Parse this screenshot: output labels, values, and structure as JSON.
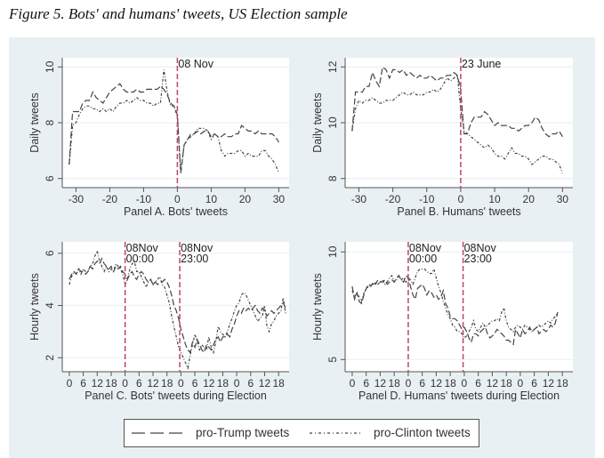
{
  "figure_title": "Figure 5. Bots' and humans' tweets, US Election sample",
  "legend": {
    "position": "bottom",
    "items": [
      {
        "label": "pro-Trump tweets",
        "style": "dashed"
      },
      {
        "label": "pro-Clinton tweets",
        "style": "dash-dot"
      }
    ]
  },
  "colors": {
    "background": "#e9f0f3",
    "plot": "#ffffff",
    "line": "#444444",
    "vline": "#c0426a"
  },
  "chart_data": [
    {
      "id": "A",
      "type": "line",
      "xlabel": "Panel A. Bots' tweets",
      "ylabel": "Daily tweets",
      "xlim": [
        -33,
        32
      ],
      "ylim": [
        5.8,
        10.2
      ],
      "xticks": [
        -30,
        -20,
        -10,
        0,
        10,
        20,
        30
      ],
      "yticks": [
        6,
        8,
        10
      ],
      "grid": true,
      "vlines": [
        {
          "x": 0,
          "label": [
            "08 Nov"
          ]
        }
      ],
      "x": [
        -32,
        -31,
        -30,
        -29,
        -28,
        -27,
        -26,
        -25,
        -24,
        -23,
        -22,
        -21,
        -20,
        -19,
        -18,
        -17,
        -16,
        -15,
        -14,
        -13,
        -12,
        -11,
        -10,
        -9,
        -8,
        -7,
        -6,
        -5,
        -4,
        -3,
        -2,
        -1,
        0,
        1,
        2,
        3,
        4,
        5,
        6,
        7,
        8,
        9,
        10,
        11,
        12,
        13,
        14,
        15,
        16,
        17,
        18,
        19,
        20,
        21,
        22,
        23,
        24,
        25,
        26,
        27,
        28,
        29,
        30
      ],
      "series": [
        {
          "name": "pro-Trump tweets",
          "style": "dashed",
          "values": [
            6.5,
            8.4,
            8.4,
            8.4,
            8.7,
            8.8,
            8.8,
            9.1,
            8.9,
            8.8,
            8.7,
            8.9,
            9.1,
            9.2,
            9.3,
            9.4,
            9.2,
            9.1,
            9.1,
            9.1,
            9.2,
            9.1,
            9.1,
            9.2,
            9.2,
            9.2,
            9.2,
            9.3,
            9.2,
            9.0,
            8.7,
            8.6,
            8.3,
            6.2,
            7.2,
            7.4,
            7.6,
            7.6,
            7.7,
            7.6,
            7.7,
            7.7,
            7.5,
            7.6,
            7.5,
            7.5,
            7.6,
            7.5,
            7.5,
            7.6,
            7.6,
            7.9,
            7.8,
            7.7,
            7.7,
            7.6,
            7.7,
            7.6,
            7.6,
            7.6,
            7.6,
            7.5,
            7.3
          ]
        },
        {
          "name": "pro-Clinton tweets",
          "style": "dash-dot",
          "values": [
            6.5,
            7.9,
            8.0,
            8.3,
            8.5,
            8.6,
            8.6,
            8.5,
            8.5,
            8.4,
            8.5,
            8.4,
            8.5,
            8.4,
            8.6,
            8.7,
            8.7,
            8.8,
            8.7,
            8.8,
            8.9,
            8.8,
            8.8,
            8.7,
            8.7,
            8.6,
            8.7,
            8.7,
            9.9,
            9.1,
            8.6,
            8.6,
            8.2,
            6.2,
            7.2,
            7.4,
            7.5,
            7.6,
            7.8,
            7.8,
            7.8,
            7.7,
            7.4,
            7.6,
            7.5,
            7.0,
            6.8,
            6.9,
            6.9,
            6.9,
            7.0,
            7.0,
            6.8,
            6.9,
            6.8,
            6.8,
            6.8,
            7.0,
            7.0,
            6.8,
            6.7,
            6.5,
            6.2
          ]
        }
      ]
    },
    {
      "id": "B",
      "type": "line",
      "xlabel": "Panel B. Humans' tweets",
      "ylabel": "Daily tweets",
      "xlim": [
        -33,
        32
      ],
      "ylim": [
        7.8,
        12.2
      ],
      "xticks": [
        -30,
        -20,
        -10,
        0,
        10,
        20,
        30
      ],
      "yticks": [
        8,
        10,
        12
      ],
      "grid": true,
      "vlines": [
        {
          "x": 0,
          "label": [
            "23 June"
          ]
        }
      ],
      "x": [
        -32,
        -31,
        -30,
        -29,
        -28,
        -27,
        -26,
        -25,
        -24,
        -23,
        -22,
        -21,
        -20,
        -19,
        -18,
        -17,
        -16,
        -15,
        -14,
        -13,
        -12,
        -11,
        -10,
        -9,
        -8,
        -7,
        -6,
        -5,
        -4,
        -3,
        -2,
        -1,
        0,
        1,
        2,
        3,
        4,
        5,
        6,
        7,
        8,
        9,
        10,
        11,
        12,
        13,
        14,
        15,
        16,
        17,
        18,
        19,
        20,
        21,
        22,
        23,
        24,
        25,
        26,
        27,
        28,
        29,
        30
      ],
      "series": [
        {
          "name": "pro-Trump tweets",
          "style": "dashed",
          "values": [
            9.7,
            11.1,
            11.1,
            11.1,
            11.3,
            11.3,
            11.8,
            11.5,
            11.3,
            12.0,
            11.9,
            11.6,
            11.9,
            11.9,
            11.8,
            11.9,
            11.7,
            11.8,
            11.7,
            11.6,
            11.7,
            11.6,
            11.6,
            11.7,
            11.6,
            11.5,
            11.6,
            11.6,
            11.7,
            11.7,
            11.8,
            11.7,
            11.2,
            9.6,
            9.6,
            10.0,
            10.2,
            10.2,
            10.2,
            10.4,
            10.3,
            10.1,
            9.9,
            10.0,
            9.9,
            9.9,
            9.9,
            9.8,
            9.8,
            9.7,
            9.8,
            9.9,
            9.9,
            10.0,
            10.2,
            10.1,
            9.8,
            9.6,
            9.5,
            9.6,
            9.6,
            9.7,
            9.5
          ]
        },
        {
          "name": "pro-Clinton tweets",
          "style": "dash-dot",
          "values": [
            9.7,
            10.5,
            10.8,
            10.7,
            10.8,
            10.8,
            10.9,
            10.8,
            10.7,
            10.7,
            10.8,
            10.8,
            10.8,
            10.9,
            11.0,
            11.1,
            11.0,
            11.0,
            11.1,
            11.0,
            11.0,
            11.0,
            11.1,
            11.1,
            11.2,
            11.1,
            11.2,
            11.4,
            11.6,
            11.5,
            11.6,
            11.7,
            10.5,
            9.7,
            9.6,
            9.5,
            9.4,
            9.3,
            9.2,
            9.1,
            9.2,
            9.1,
            8.9,
            8.8,
            8.8,
            8.7,
            8.9,
            9.1,
            8.9,
            8.9,
            8.8,
            8.8,
            8.7,
            8.5,
            8.6,
            8.7,
            8.8,
            8.8,
            8.7,
            8.7,
            8.6,
            8.5,
            8.2
          ]
        }
      ]
    },
    {
      "id": "C",
      "type": "line",
      "xlabel": "Panel C. Bots' tweets during Election",
      "ylabel": "Hourly tweets",
      "xlim": [
        -1.5,
        93
      ],
      "ylim": [
        1.6,
        6.3
      ],
      "xticks": [
        0,
        6,
        12,
        18,
        24,
        30,
        36,
        42,
        48,
        54,
        60,
        66,
        72,
        78,
        84,
        90
      ],
      "xticklabels": [
        "0",
        "6",
        "12",
        "18",
        "0",
        "6",
        "12",
        "18",
        "0",
        "6",
        "12",
        "18",
        "0",
        "6",
        "12",
        "18"
      ],
      "yticks": [
        2,
        4,
        6
      ],
      "grid": true,
      "vlines": [
        {
          "x": 24,
          "label": [
            "08Nov",
            "00:00"
          ]
        },
        {
          "x": 47.5,
          "label": [
            "08Nov",
            "23:00"
          ]
        }
      ],
      "x_step": 1,
      "x_start": 0,
      "series": [
        {
          "name": "pro-Trump tweets",
          "style": "dashed",
          "values": [
            5.0,
            5.2,
            5.3,
            5.2,
            5.4,
            5.3,
            5.3,
            5.2,
            5.3,
            5.5,
            5.4,
            5.6,
            5.7,
            5.6,
            5.8,
            5.6,
            5.5,
            5.4,
            5.5,
            5.3,
            5.5,
            5.4,
            5.5,
            5.3,
            5.2,
            5.0,
            5.2,
            5.3,
            5.1,
            5.0,
            5.2,
            5.3,
            5.2,
            5.0,
            4.9,
            5.0,
            4.8,
            4.9,
            4.8,
            4.9,
            4.9,
            5.0,
            4.9,
            4.7,
            4.4,
            4.0,
            3.8,
            3.5,
            3.1,
            2.8,
            2.5,
            2.3,
            2.2,
            2.6,
            2.4,
            2.7,
            2.5,
            2.3,
            2.2,
            2.5,
            2.4,
            2.3,
            2.5,
            2.7,
            2.8,
            2.6,
            2.8,
            2.8,
            2.9,
            2.8,
            3.1,
            3.3,
            3.6,
            3.8,
            3.7,
            3.9,
            3.8,
            3.9,
            3.8,
            3.9,
            4.0,
            3.8,
            3.7,
            3.9,
            3.8,
            3.6,
            3.7,
            3.8,
            3.7,
            3.8,
            3.9,
            4.0,
            4.1,
            3.9
          ]
        },
        {
          "name": "pro-Clinton tweets",
          "style": "dash-dot",
          "values": [
            4.8,
            5.1,
            5.3,
            5.2,
            5.4,
            5.2,
            5.4,
            5.3,
            5.3,
            5.5,
            5.6,
            5.9,
            6.1,
            5.7,
            5.5,
            5.3,
            5.5,
            5.3,
            5.4,
            5.3,
            5.6,
            5.5,
            5.4,
            5.2,
            4.8,
            5.0,
            5.4,
            5.6,
            5.7,
            5.3,
            5.3,
            5.1,
            4.9,
            4.7,
            4.9,
            5.0,
            4.8,
            4.9,
            5.0,
            5.1,
            4.8,
            4.7,
            4.4,
            4.1,
            3.6,
            3.2,
            2.8,
            2.4,
            2.2,
            2.0,
            1.8,
            1.6,
            2.1,
            2.5,
            2.9,
            2.6,
            2.3,
            2.5,
            2.4,
            2.3,
            2.8,
            2.4,
            2.2,
            2.6,
            3.2,
            3.0,
            2.9,
            2.8,
            3.0,
            3.3,
            3.5,
            3.8,
            4.0,
            4.1,
            4.4,
            4.5,
            4.4,
            4.2,
            4.0,
            3.8,
            3.6,
            3.4,
            3.5,
            3.6,
            4.0,
            3.2,
            3.0,
            3.3,
            3.4,
            3.6,
            3.7,
            3.8,
            4.3,
            3.7
          ]
        }
      ]
    },
    {
      "id": "D",
      "type": "line",
      "xlabel": "Panel D. Humans' tweets during Election",
      "ylabel": "Hourly tweets",
      "xlim": [
        -1.5,
        93
      ],
      "ylim": [
        4.6,
        10.3
      ],
      "xticks": [
        0,
        6,
        12,
        18,
        24,
        30,
        36,
        42,
        48,
        54,
        60,
        66,
        72,
        78,
        84,
        90
      ],
      "xticklabels": [
        "0",
        "6",
        "12",
        "18",
        "0",
        "6",
        "12",
        "18",
        "0",
        "6",
        "12",
        "18",
        "0",
        "6",
        "12",
        "18"
      ],
      "yticks": [
        5,
        10
      ],
      "grid": true,
      "vlines": [
        {
          "x": 24,
          "label": [
            "08Nov",
            "00:00"
          ]
        },
        {
          "x": 47.5,
          "label": [
            "08Nov",
            "23:00"
          ]
        }
      ],
      "x_step": 1,
      "x_start": 0,
      "series": [
        {
          "name": "pro-Trump tweets",
          "style": "dashed",
          "values": [
            8.4,
            7.8,
            8.1,
            7.7,
            7.6,
            8.0,
            8.3,
            8.5,
            8.4,
            8.6,
            8.5,
            8.7,
            8.6,
            8.6,
            8.7,
            8.5,
            8.6,
            8.7,
            8.6,
            8.8,
            8.9,
            8.7,
            8.6,
            8.9,
            8.8,
            8.4,
            8.0,
            7.8,
            8.3,
            8.4,
            8.5,
            8.3,
            8.0,
            8.2,
            8.1,
            7.9,
            8.0,
            7.8,
            7.9,
            8.2,
            7.6,
            7.4,
            7.0,
            6.9,
            6.9,
            6.8,
            6.6,
            6.4,
            6.5,
            6.3,
            6.0,
            5.8,
            6.2,
            6.2,
            6.1,
            6.3,
            6.4,
            6.5,
            6.2,
            6.0,
            6.1,
            6.2,
            6.4,
            6.3,
            6.2,
            6.1,
            5.9,
            5.9,
            5.8,
            5.7,
            6.4,
            6.2,
            6.0,
            6.4,
            6.2,
            6.3,
            6.5,
            6.3,
            6.4,
            6.5,
            6.2,
            6.3,
            6.4,
            6.3,
            6.4,
            6.6,
            6.5,
            6.7,
            7.2
          ]
        },
        {
          "name": "pro-Clinton tweets",
          "style": "dash-dot",
          "values": [
            8.2,
            7.9,
            8.1,
            7.9,
            7.7,
            8.1,
            8.3,
            8.4,
            8.5,
            8.5,
            8.6,
            8.5,
            8.6,
            8.7,
            8.5,
            8.6,
            8.8,
            8.9,
            8.6,
            8.7,
            8.9,
            8.7,
            8.8,
            8.6,
            8.8,
            8.7,
            8.5,
            8.8,
            9.1,
            9.2,
            9.2,
            9.2,
            9.1,
            9.0,
            9.0,
            9.2,
            8.8,
            8.4,
            8.1,
            7.7,
            7.4,
            7.1,
            6.9,
            6.6,
            6.5,
            6.3,
            6.3,
            6.2,
            6.0,
            6.1,
            6.3,
            6.5,
            6.8,
            6.4,
            6.3,
            6.5,
            6.7,
            6.5,
            6.6,
            6.7,
            6.8,
            6.8,
            6.9,
            6.8,
            7.2,
            7.4,
            6.8,
            6.5,
            6.4,
            6.3,
            6.5,
            6.6,
            6.5,
            6.4,
            6.6,
            6.5,
            6.4,
            6.3,
            6.4,
            6.5,
            6.6,
            6.5,
            6.6,
            6.7,
            6.8,
            6.7,
            6.9,
            7.0,
            7.2
          ]
        }
      ]
    }
  ]
}
